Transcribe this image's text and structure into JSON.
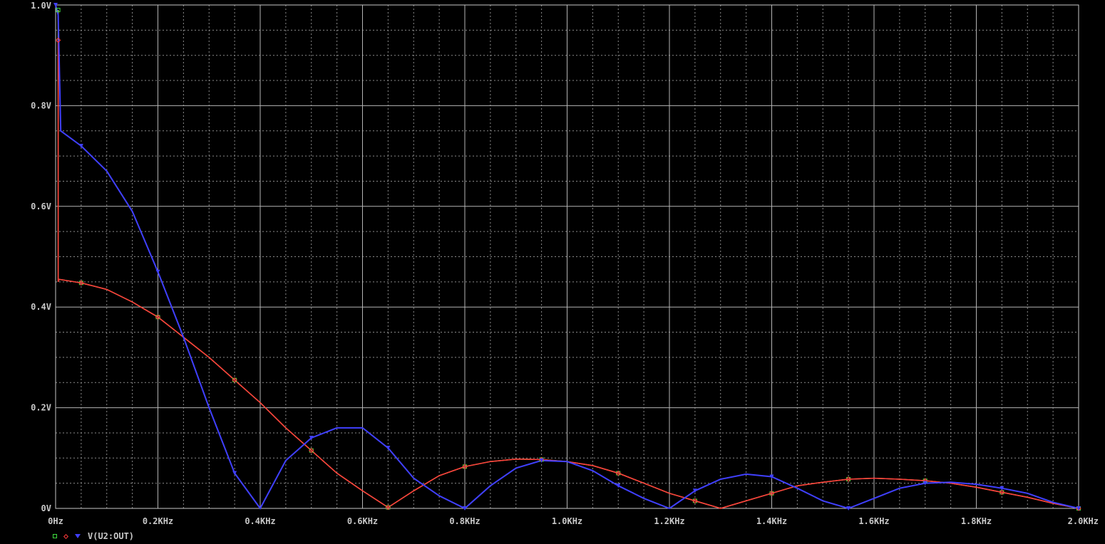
{
  "chart_data": {
    "type": "line",
    "xlim": [
      0,
      2000
    ],
    "ylim": [
      0,
      1.0
    ],
    "grid": true,
    "x_tick_labels": [
      "0Hz",
      "0.2KHz",
      "0.4KHz",
      "0.6KHz",
      "0.8KHz",
      "1.0KHz",
      "1.2KHz",
      "1.4KHz",
      "1.6KHz",
      "1.8KHz",
      "2.0KHz"
    ],
    "x_ticks": [
      0,
      200,
      400,
      600,
      800,
      1000,
      1200,
      1400,
      1600,
      1800,
      2000
    ],
    "y_tick_labels": [
      "1.0V",
      "0.8V",
      "0.6V",
      "0.4V",
      "0.2V",
      "0V"
    ],
    "y_ticks": [
      1.0,
      0.8,
      0.6,
      0.4,
      0.2,
      0
    ],
    "legend_position": "bottom-left",
    "series": [
      {
        "name": "",
        "color": "#e0e060",
        "marker": "square",
        "marker_color": "#3fdc3f",
        "x": [
          5,
          5,
          7,
          50,
          100,
          150,
          200,
          250,
          300,
          350,
          400,
          450,
          500,
          550,
          600,
          650,
          700,
          750,
          800,
          850,
          900,
          950,
          1000,
          1050,
          1100,
          1150,
          1200,
          1250,
          1300,
          1350,
          1400,
          1450,
          1500,
          1550,
          1600,
          1650,
          1700,
          1750,
          1800,
          1850,
          1900,
          1950,
          2000
        ],
        "y": [
          0.99,
          0.45,
          0.455,
          0.448,
          0.435,
          0.41,
          0.38,
          0.34,
          0.3,
          0.255,
          0.21,
          0.16,
          0.115,
          0.07,
          0.035,
          0.002,
          0.035,
          0.065,
          0.083,
          0.093,
          0.098,
          0.097,
          0.093,
          0.085,
          0.07,
          0.05,
          0.03,
          0.015,
          0.0,
          0.015,
          0.03,
          0.045,
          0.052,
          0.058,
          0.06,
          0.058,
          0.055,
          0.05,
          0.042,
          0.032,
          0.022,
          0.01,
          0.0
        ]
      },
      {
        "name": "",
        "color": "#ff3a3a",
        "marker": "diamond",
        "marker_color": "#ff3a3a",
        "x": [
          5,
          5,
          7,
          50,
          100,
          150,
          200,
          250,
          300,
          350,
          400,
          450,
          500,
          550,
          600,
          650,
          700,
          750,
          800,
          850,
          900,
          950,
          1000,
          1050,
          1100,
          1150,
          1200,
          1250,
          1300,
          1350,
          1400,
          1450,
          1500,
          1550,
          1600,
          1650,
          1700,
          1750,
          1800,
          1850,
          1900,
          1950,
          2000
        ],
        "y": [
          0.93,
          0.45,
          0.455,
          0.448,
          0.435,
          0.41,
          0.38,
          0.34,
          0.3,
          0.255,
          0.21,
          0.16,
          0.115,
          0.07,
          0.035,
          0.002,
          0.035,
          0.065,
          0.083,
          0.093,
          0.098,
          0.097,
          0.093,
          0.085,
          0.07,
          0.05,
          0.03,
          0.015,
          0.0,
          0.015,
          0.03,
          0.045,
          0.052,
          0.058,
          0.06,
          0.058,
          0.055,
          0.05,
          0.042,
          0.032,
          0.022,
          0.01,
          0.0
        ]
      },
      {
        "name": "V(U2:OUT)",
        "color": "#4040ff",
        "marker": "triangle",
        "marker_color": "#4040ff",
        "x": [
          0,
          5,
          10,
          50,
          100,
          150,
          200,
          250,
          300,
          350,
          400,
          450,
          500,
          550,
          600,
          650,
          700,
          750,
          800,
          850,
          900,
          950,
          1000,
          1050,
          1100,
          1150,
          1200,
          1250,
          1300,
          1350,
          1400,
          1450,
          1500,
          1550,
          1600,
          1650,
          1700,
          1750,
          1800,
          1850,
          1900,
          1950,
          2000
        ],
        "y": [
          1.0,
          0.98,
          0.75,
          0.72,
          0.67,
          0.59,
          0.47,
          0.34,
          0.2,
          0.07,
          0.0,
          0.095,
          0.14,
          0.16,
          0.16,
          0.12,
          0.06,
          0.025,
          0.0,
          0.045,
          0.08,
          0.095,
          0.093,
          0.075,
          0.045,
          0.02,
          0.0,
          0.035,
          0.058,
          0.068,
          0.063,
          0.04,
          0.015,
          0.0,
          0.02,
          0.04,
          0.05,
          0.052,
          0.048,
          0.04,
          0.03,
          0.012,
          0.0
        ]
      }
    ]
  }
}
